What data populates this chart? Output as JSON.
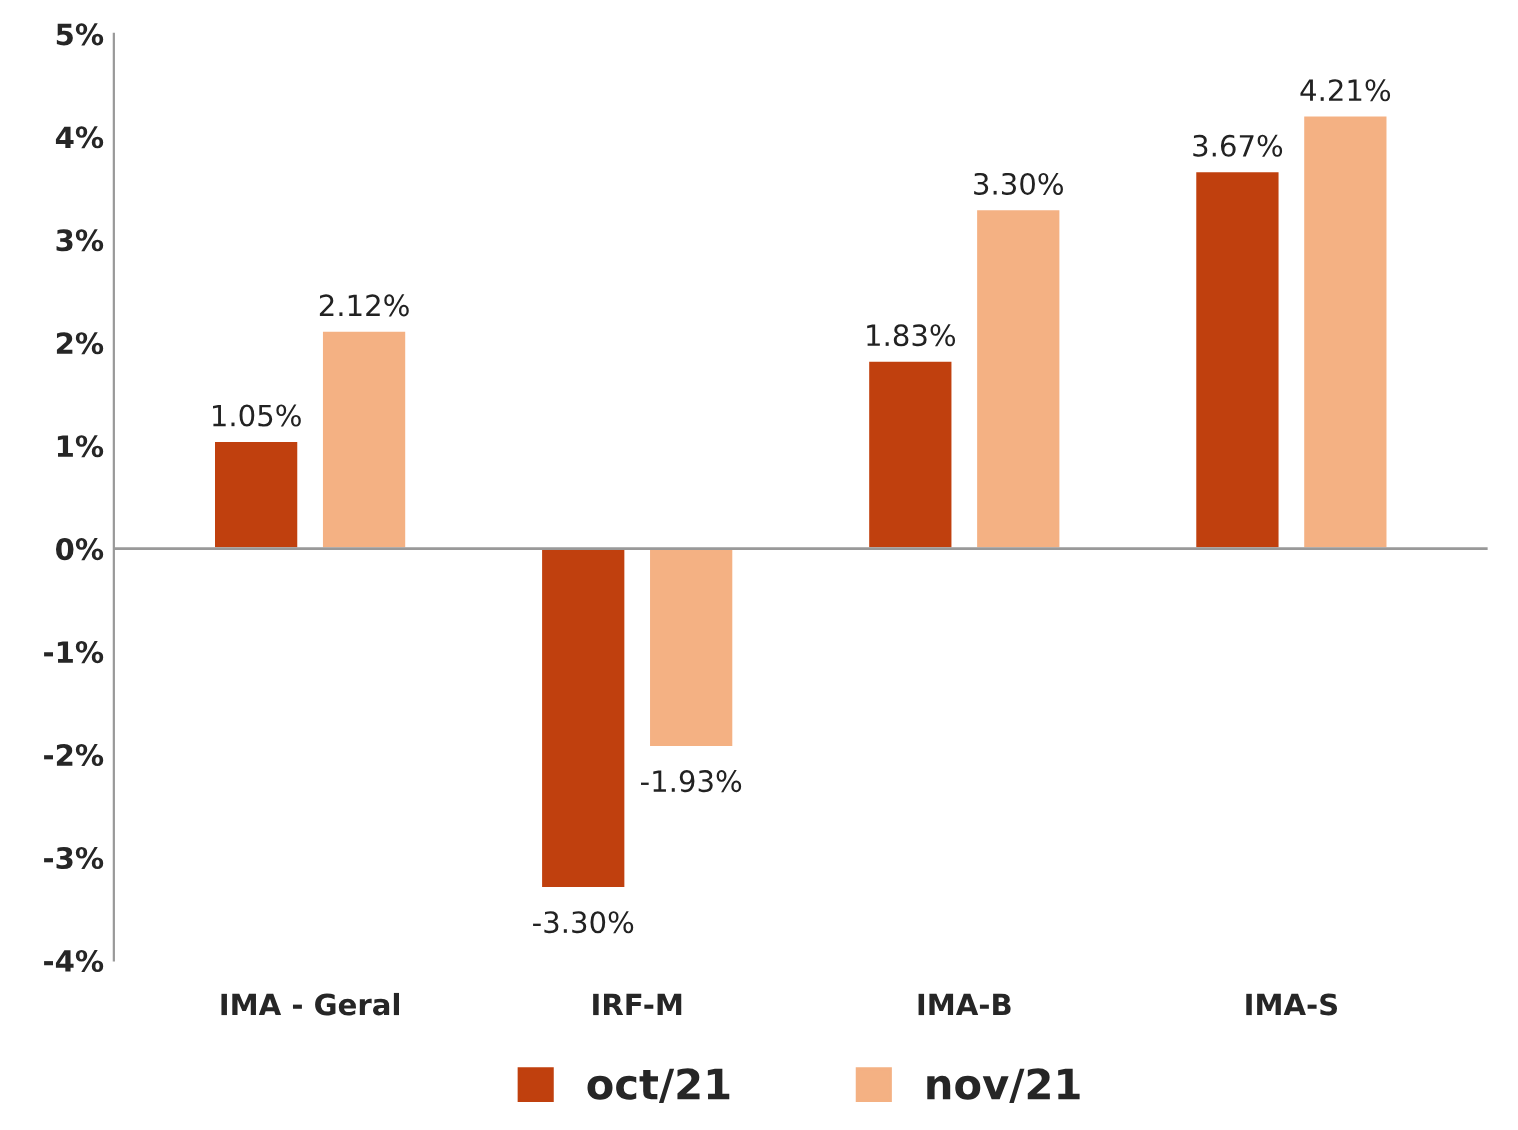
{
  "chart_data": {
    "type": "bar",
    "categories": [
      "IMA - Geral",
      "IRF-M",
      "IMA-B",
      "IMA-S"
    ],
    "series": [
      {
        "name": "oct/21",
        "color": "#c0400e",
        "values": [
          1.05,
          -3.3,
          1.83,
          3.67
        ],
        "value_labels": [
          "1.05%",
          "-3.30%",
          "1.83%",
          "3.67%"
        ]
      },
      {
        "name": "nov/21",
        "color": "#f4b183",
        "values": [
          2.12,
          -1.93,
          3.3,
          4.21
        ],
        "value_labels": [
          "2.12%",
          "-1.93%",
          "3.30%",
          "4.21%"
        ]
      }
    ],
    "ylim": [
      -4,
      5
    ],
    "yticks": [
      {
        "value": -4,
        "label": "-4%"
      },
      {
        "value": -3,
        "label": "-3%"
      },
      {
        "value": -2,
        "label": "-2%"
      },
      {
        "value": -1,
        "label": "-1%"
      },
      {
        "value": 0,
        "label": "0%"
      },
      {
        "value": 1,
        "label": "1%"
      },
      {
        "value": 2,
        "label": "2%"
      },
      {
        "value": 3,
        "label": "3%"
      },
      {
        "value": 4,
        "label": "4%"
      },
      {
        "value": 5,
        "label": "5%"
      }
    ],
    "ref_lines": [
      {
        "axis": "y",
        "value": 0,
        "color": "#999999"
      }
    ],
    "grid": false,
    "legend": "bottom"
  }
}
